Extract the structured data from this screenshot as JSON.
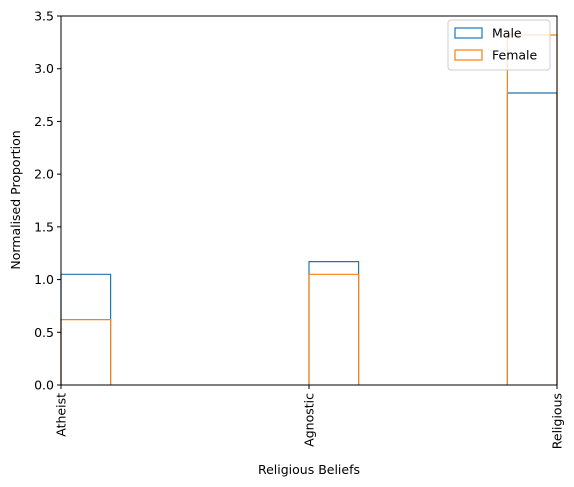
{
  "chart_data": {
    "type": "bar",
    "style": "step-histogram",
    "categories": [
      "Atheist",
      "Agnostic",
      "Religious"
    ],
    "xlabel": "Religious Beliefs",
    "ylabel": "Normalised Proportion",
    "ylim": [
      0,
      3.5
    ],
    "yticks": [
      "0.0",
      "0.5",
      "1.0",
      "1.5",
      "2.0",
      "2.5",
      "3.0",
      "3.5"
    ],
    "grid": false,
    "legend_position": "top-right",
    "series": [
      {
        "name": "Male",
        "color": "#1f77b4",
        "values": [
          1.05,
          1.17,
          2.77
        ]
      },
      {
        "name": "Female",
        "color": "#ff7f0e",
        "values": [
          0.62,
          1.05,
          3.32
        ]
      }
    ]
  }
}
